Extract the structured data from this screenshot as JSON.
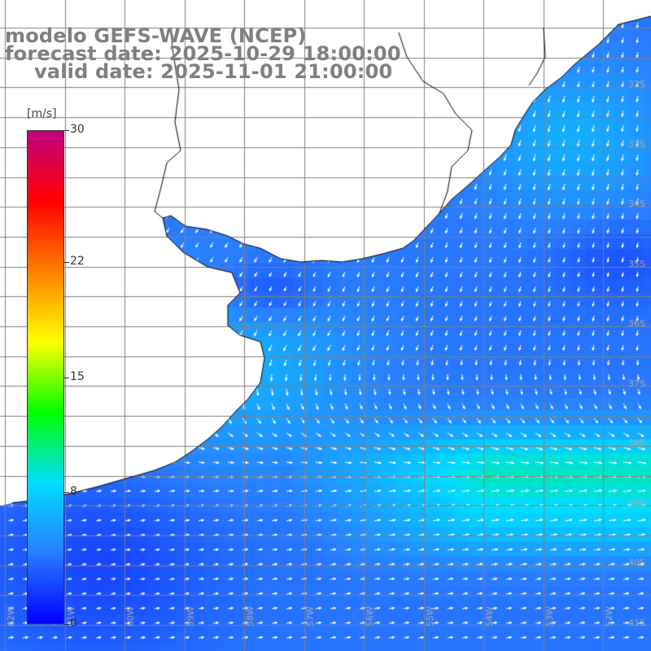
{
  "title": {
    "line1": "modelo GEFS-WAVE (NCEP)",
    "line2": "forecast date: 2025-10-29 18:00:00",
    "line3": "valid date: 2025-11-01 21:00:00"
  },
  "colorbar": {
    "unit": "[m/s]",
    "ticks": [
      "30",
      "22",
      "15",
      "8",
      "0"
    ],
    "tick_values": [
      30,
      22,
      15,
      8,
      0
    ],
    "min": 0,
    "max": 30,
    "colors": [
      "#0000ff",
      "#2a7dff",
      "#00dcff",
      "#00ff00",
      "#ffff00",
      "#ff8000",
      "#ff0000",
      "#c0007f"
    ]
  },
  "map": {
    "lat_labels": [
      "32S",
      "33S",
      "34S",
      "35S",
      "36S",
      "37S",
      "38S",
      "39S",
      "40S",
      "41S"
    ],
    "lon_labels": [
      "62W",
      "61W",
      "60W",
      "59W",
      "58W",
      "57W",
      "56W",
      "55W",
      "54W",
      "53W",
      "52W"
    ],
    "grid": true,
    "land_color": "#ffffff",
    "coast_color": "#000000",
    "grid_color": "#808080",
    "arrow_color": "#ffffff"
  }
}
